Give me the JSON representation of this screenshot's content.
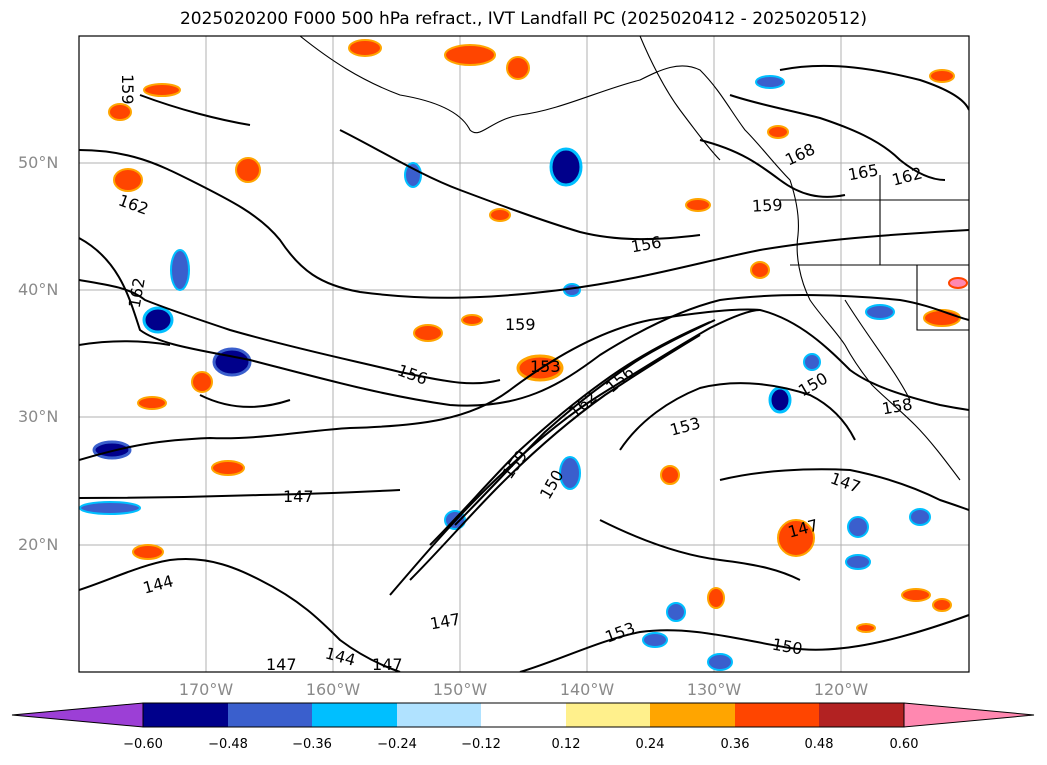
{
  "title": "2025020200 F000 500 hPa refract., IVT Landfall PC (2025020412 - 2025020512)",
  "lat_labels": [
    "50°N",
    "40°N",
    "30°N",
    "20°N"
  ],
  "lon_labels": [
    "170°W",
    "160°W",
    "150°W",
    "140°W",
    "130°W",
    "120°W"
  ],
  "contour_labels": [
    "159",
    "162",
    "162",
    "168",
    "165",
    "162",
    "159",
    "156",
    "159",
    "156",
    "153",
    "162",
    "156",
    "153",
    "150",
    "158",
    "159",
    "150",
    "147",
    "147",
    "147",
    "144",
    "147",
    "144",
    "147",
    "153",
    "150",
    "147"
  ],
  "colorbar": {
    "ticks": [
      "−0.60",
      "−0.48",
      "−0.36",
      "−0.24",
      "−0.12",
      "0.12",
      "0.24",
      "0.36",
      "0.48",
      "0.60"
    ],
    "colors": [
      "#9c3fd6",
      "#00008b",
      "#3a5fcd",
      "#00bfff",
      "#b0e2ff",
      "#ffffff",
      "#fff08c",
      "#ffa500",
      "#ff4500",
      "#b22222",
      "#ff88b0"
    ]
  }
}
